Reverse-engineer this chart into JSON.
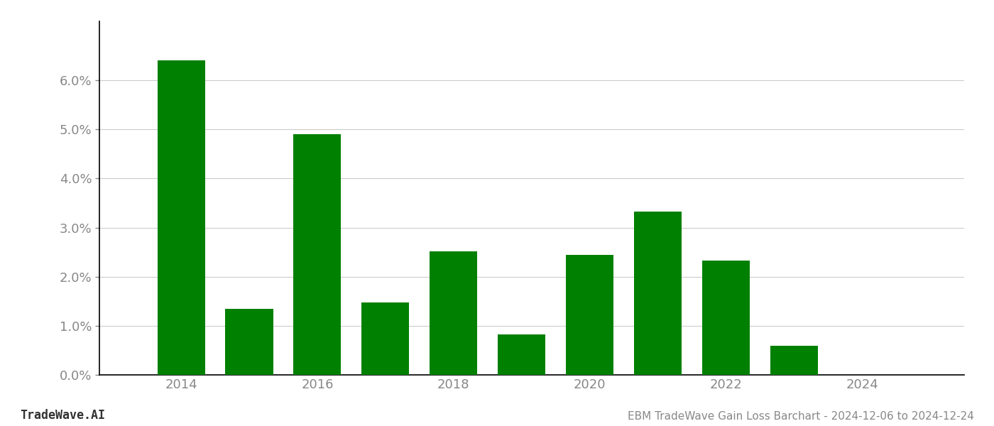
{
  "years": [
    2014,
    2015,
    2016,
    2017,
    2018,
    2019,
    2020,
    2021,
    2022,
    2023,
    2024
  ],
  "values": [
    0.0641,
    0.0135,
    0.049,
    0.0147,
    0.0251,
    0.0083,
    0.0245,
    0.0333,
    0.0233,
    0.006,
    0.0
  ],
  "bar_color": "#008000",
  "background_color": "#ffffff",
  "ylim": [
    0,
    0.072
  ],
  "ytick_values": [
    0.0,
    0.01,
    0.02,
    0.03,
    0.04,
    0.05,
    0.06
  ],
  "xtick_values": [
    2014,
    2016,
    2018,
    2020,
    2022,
    2024
  ],
  "footer_left": "TradeWave.AI",
  "footer_right": "EBM TradeWave Gain Loss Barchart - 2024-12-06 to 2024-12-24",
  "footer_fontsize": 11,
  "grid_color": "#cccccc",
  "axis_label_color": "#888888",
  "spine_color": "#000000",
  "bar_width": 0.7,
  "tick_label_fontsize": 13,
  "xlim_left": 2012.8,
  "xlim_right": 2025.5
}
